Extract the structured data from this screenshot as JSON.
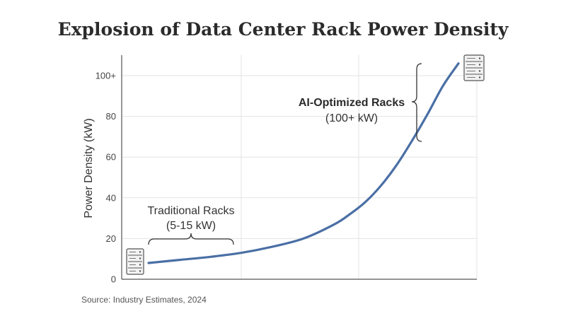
{
  "chart_data": {
    "type": "line",
    "title": "Explosion of Data Center Rack Power Density",
    "xlabel": "",
    "ylabel": "Power Density (kW)",
    "ylim": [
      0,
      110
    ],
    "xlim": [
      0,
      10
    ],
    "y_ticks": [
      {
        "value": 0,
        "label": "0"
      },
      {
        "value": 20,
        "label": "20"
      },
      {
        "value": 40,
        "label": "40"
      },
      {
        "value": 60,
        "label": "60"
      },
      {
        "value": 80,
        "label": "80"
      },
      {
        "value": 100,
        "label": "100+"
      }
    ],
    "x_gridlines": [
      0,
      3.33,
      6.67,
      10
    ],
    "grid": true,
    "series": [
      {
        "color": "#4a6fa5",
        "x": [
          0,
          1,
          2,
          3,
          4,
          5,
          6,
          6.5,
          7,
          7.5,
          8,
          8.5,
          9,
          9.5,
          10
        ],
        "y": [
          8,
          9.5,
          11,
          13,
          16,
          20,
          27,
          32,
          38,
          46,
          56,
          68,
          81,
          95,
          106
        ]
      }
    ],
    "annotations": [
      {
        "lines": [
          "Traditional Racks",
          "(5-15 kW)"
        ],
        "bold_first": false
      },
      {
        "lines": [
          "AI-Optimized Racks",
          "(100+ kW)"
        ],
        "bold_first": true
      }
    ],
    "source": "Source: Industry Estimates, 2024",
    "icons": [
      "server-rack-icon-low",
      "server-rack-icon-high"
    ]
  }
}
